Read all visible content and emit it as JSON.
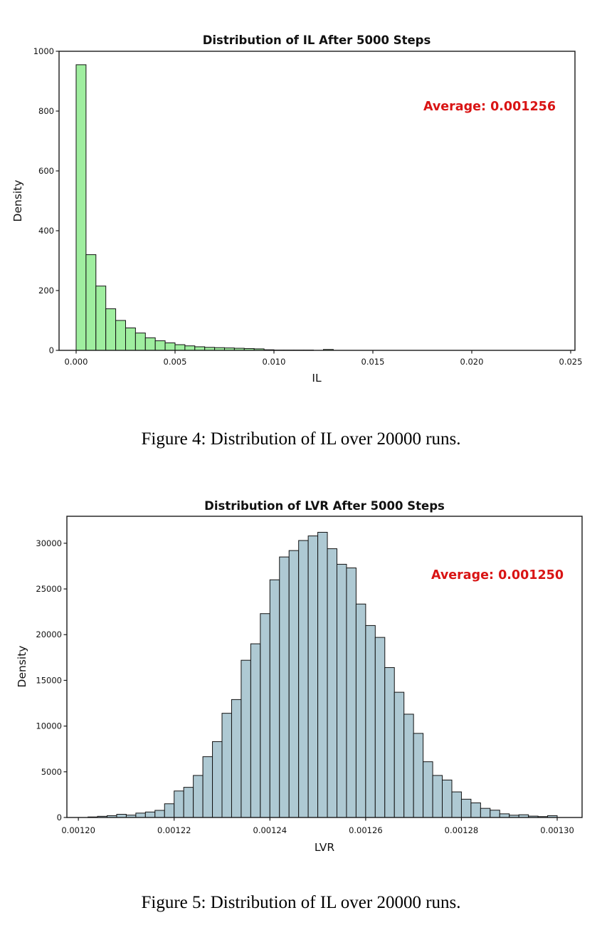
{
  "page": {
    "background": "#ffffff"
  },
  "captions": [
    "Figure 4: Distribution of IL over 20000 runs.",
    "Figure 5: Distribution of IL over 20000 runs."
  ],
  "chart_data": [
    {
      "type": "bar",
      "subtype": "histogram",
      "title": "Distribution of IL After 5000 Steps",
      "xlabel": "IL",
      "ylabel": "Density",
      "annotation": "Average: 0.001256",
      "annotation_color": "#d91414",
      "bar_fill": "#9fee9f",
      "bar_edge": "#121212",
      "bin_start": 0.0,
      "bin_width": 0.0005,
      "values": [
        955,
        320,
        215,
        139,
        100,
        75,
        58,
        42,
        32,
        25,
        19,
        15,
        12,
        10,
        9,
        8,
        7,
        6,
        5,
        2,
        1,
        1,
        1,
        1,
        0,
        3
      ],
      "xlim": [
        -0.000863,
        0.025216
      ],
      "ylim": [
        0,
        1000
      ],
      "xticks": [
        0.0,
        0.005,
        0.01,
        0.015,
        0.02,
        0.025
      ],
      "xtick_labels": [
        "0.000",
        "0.005",
        "0.010",
        "0.015",
        "0.020",
        "0.025"
      ],
      "yticks": [
        0,
        200,
        400,
        600,
        800,
        1000
      ],
      "ytick_labels": [
        "0",
        "200",
        "400",
        "600",
        "800",
        "1000"
      ],
      "grid": false,
      "legend": null
    },
    {
      "type": "bar",
      "subtype": "histogram",
      "title": "Distribution of LVR After 5000 Steps",
      "xlabel": "LVR",
      "ylabel": "Density",
      "annotation": "Average: 0.001250",
      "annotation_color": "#d91414",
      "bar_fill": "#aec9d3",
      "bar_edge": "#121212",
      "bin_start": 0.001202,
      "bin_width": 2e-06,
      "values": [
        60,
        130,
        200,
        350,
        260,
        480,
        600,
        780,
        1500,
        2900,
        3300,
        4600,
        6650,
        8300,
        11400,
        12900,
        17200,
        19000,
        22300,
        26000,
        28500,
        29200,
        30300,
        30800,
        31200,
        29400,
        27700,
        27300,
        23350,
        21000,
        19700,
        16400,
        13700,
        11300,
        9200,
        6100,
        4600,
        4100,
        2800,
        2000,
        1600,
        1000,
        800,
        400,
        250,
        300,
        150,
        100,
        200
      ],
      "xlim": [
        0.0011976,
        0.0013052
      ],
      "ylim": [
        0,
        32950
      ],
      "xticks": [
        0.0012,
        0.00122,
        0.00124,
        0.00126,
        0.00128,
        0.0013
      ],
      "xtick_labels": [
        "0.00120",
        "0.00122",
        "0.00124",
        "0.00126",
        "0.00128",
        "0.00130"
      ],
      "yticks": [
        0,
        5000,
        10000,
        15000,
        20000,
        25000,
        30000
      ],
      "ytick_labels": [
        "0",
        "5000",
        "10000",
        "15000",
        "20000",
        "25000",
        "30000"
      ],
      "grid": false,
      "legend": null
    }
  ]
}
